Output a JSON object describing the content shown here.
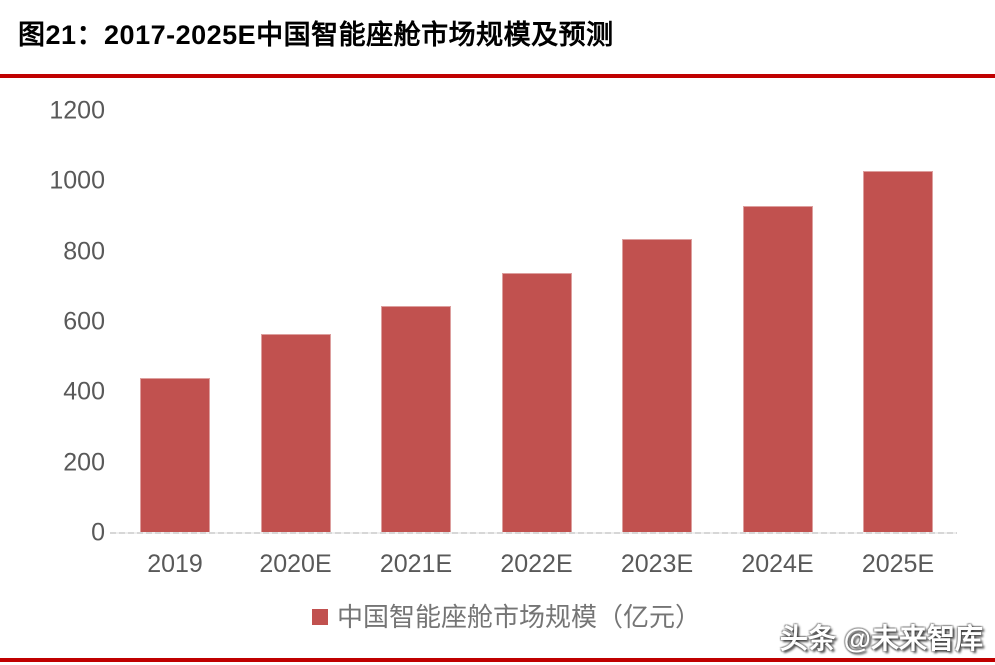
{
  "title": "图21：2017-2025E中国智能座舱市场规模及预测",
  "watermark": "头条 @未来智库",
  "legend": {
    "label": "中国智能座舱市场规模（亿元）"
  },
  "colors": {
    "bar": "#C1514F",
    "rule": "#C00000",
    "axis_text": "#595959",
    "legend_text": "#757575",
    "axis_line": "#D7D7D7",
    "title_text": "#000000"
  },
  "chart_data": {
    "type": "bar",
    "title": "图21：2017-2025E中国智能座舱市场规模及预测",
    "categories": [
      "2019",
      "2020E",
      "2021E",
      "2022E",
      "2023E",
      "2024E",
      "2025E"
    ],
    "values": [
      440,
      565,
      645,
      740,
      835,
      930,
      1030
    ],
    "series": [
      {
        "name": "中国智能座舱市场规模（亿元）",
        "values": [
          440,
          565,
          645,
          740,
          835,
          930,
          1030
        ]
      }
    ],
    "xlabel": "",
    "ylabel": "",
    "ylim": [
      0,
      1200
    ],
    "yticks": [
      0,
      200,
      400,
      600,
      800,
      1000,
      1200
    ],
    "grid": false,
    "legend_entries": [
      "中国智能座舱市场规模（亿元）"
    ],
    "legend_position": "bottom",
    "bar_color": "#C1514F"
  }
}
